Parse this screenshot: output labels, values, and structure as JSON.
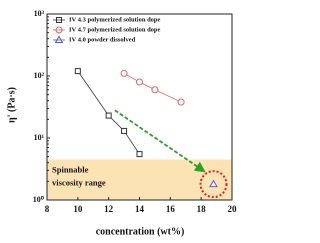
{
  "chart_data": {
    "type": "line",
    "x_label": "concentration (wt%)",
    "y_label": "η' (Pa·s)",
    "log_y": true,
    "xlim": [
      8,
      20
    ],
    "xticks": [
      8,
      10,
      12,
      14,
      16,
      18,
      20
    ],
    "ylim": [
      1,
      1000
    ],
    "yticks": [
      {
        "value": 1,
        "label": "10⁰"
      },
      {
        "value": 10,
        "label": "10¹"
      },
      {
        "value": 100,
        "label": "10²"
      },
      {
        "value": 1000,
        "label": "10³"
      }
    ],
    "shaded_ylim": [
      1,
      4.5
    ],
    "shaded_color": "#fbe3b4",
    "annotation_lines": [
      "Spinnable",
      "viscosity range"
    ],
    "legend_position": "upper left",
    "series": [
      {
        "name": "IV 4.3 polymerized solution dope",
        "color": "#333333",
        "marker": "square",
        "x": [
          10,
          12,
          13,
          14
        ],
        "values": [
          120,
          23,
          13,
          5.5
        ]
      },
      {
        "name": "IV 4.7 polymerized solution dope",
        "color": "#e06060",
        "marker": "circle",
        "x": [
          13,
          14,
          15,
          16.7
        ],
        "values": [
          110,
          80,
          60,
          38
        ]
      },
      {
        "name": "IV 4.0 powder dissolved",
        "color": "#5555dd",
        "marker": "triangle",
        "x": [
          18.8
        ],
        "values": [
          1.8
        ]
      }
    ]
  }
}
